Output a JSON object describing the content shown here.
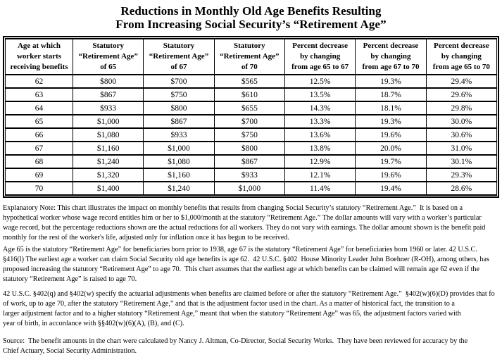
{
  "title": {
    "line1": "Reductions in Monthly Old Age Benefits Resulting",
    "line2": "From Increasing Social Security’s “Retirement Age”"
  },
  "table": {
    "headers": [
      {
        "lines": [
          "Age at which",
          "worker starts",
          "receiving benefits"
        ]
      },
      {
        "lines": [
          "Statutory",
          "“Retirement Age”",
          "of 65"
        ]
      },
      {
        "lines": [
          "Statutory",
          "“Retirement Age”",
          "of 67"
        ]
      },
      {
        "lines": [
          "Statutory",
          "“Retirement Age”",
          "of 70"
        ]
      },
      {
        "lines": [
          "Percent decrease",
          "by changing",
          "from age 65 to 67"
        ]
      },
      {
        "lines": [
          "Percent decrease",
          "by changing",
          "from age 67 to 70"
        ]
      },
      {
        "lines": [
          "Percent decrease",
          "by changing",
          "from age 65 to 70"
        ]
      }
    ],
    "rows": [
      [
        "62",
        "$800",
        "$700",
        "$565",
        "12.5%",
        "19.3%",
        "29.4%"
      ],
      [
        "63",
        "$867",
        "$750",
        "$610",
        "13.5%",
        "18.7%",
        "29.6%"
      ],
      [
        "64",
        "$933",
        "$800",
        "$655",
        "14.3%",
        "18.1%",
        "29.8%"
      ],
      [
        "65",
        "$1,000",
        "$867",
        "$700",
        "13.3%",
        "19.3%",
        "30.0%"
      ],
      [
        "66",
        "$1,080",
        "$933",
        "$750",
        "13.6%",
        "19.6%",
        "30.6%"
      ],
      [
        "67",
        "$1,160",
        "$1,000",
        "$800",
        "13.8%",
        "20.0%",
        "31.0%"
      ],
      [
        "68",
        "$1,240",
        "$1,080",
        "$867",
        "12.9%",
        "19.7%",
        "30.1%"
      ],
      [
        "69",
        "$1,320",
        "$1,160",
        "$933",
        "12.1%",
        "19.6%",
        "29.3%"
      ],
      [
        "70",
        "$1,400",
        "$1,240",
        "$1,000",
        "11.4%",
        "19.4%",
        "28.6%"
      ]
    ]
  },
  "notes": {
    "paragraphs": [
      {
        "lines": [
          "Explanatory Note: This chart illustrates the impact on monthly benefits that results from changing Social Security’s statutory “Retirement Age.”  It is based on a",
          "hypothetical worker whose wage record entitles him or her to $1,000/month at the statutory “Retirement Age.” The dollar amounts will vary with a worker’s particular",
          "wage record, but the percentage reductions shown are the actual reductions for all workers. They do not vary with earnings. The dollar amount shown is the benefit paid",
          "monthly for the rest of the worker's life, adjusted only for inflation once it has begun to be received."
        ]
      },
      {
        "lines": [
          "Age 65 is the statutory “Retirement Age” for beneficiaries born prior to 1938, age 67 is the statutory “Retirement Age” for beneficiaries born 1960 or later. 42 U.S.C.",
          "§416(l) The earliest age a worker can claim Social Security old age benefits is age 62.  42 U.S.C. §402  House Minority Leader John Boehner (R-OH), among others, has",
          "proposed increasing the statutory “Retirement Age” to age 70.  This chart assumes that the earliest age at which benefits can be claimed will remain age 62 even if the",
          "statutory “Retirement Age” is raised to age 70."
        ]
      },
      {
        "lines": [
          "42 U.S.C. §402(q) and §402(w) specify the actuarial adjustments when benefits are claimed before or after the statutory “Retirement Age.”  §402(w)(6)(D) provides that fo",
          "of work, up to age 70, after the statutory “Retirement Age,” and that is the adjustment factor used in the chart. As a matter of historical fact, the transition to a",
          "larger adjustment factor and to a higher statutory “Retirement Age,” meant that when the statutory “Retirement Age” was 65, the adjustment factors varied with",
          "year of birth, in accordance with §§402(w)(6)(A), (B), and (C)."
        ]
      },
      {
        "lines": [
          "Source:  The benefit amounts in the chart were calculated by Nancy J. Altman, Co-Director, Social Security Works.  They have been reviewed for accuracy by the",
          "Chief Actuary, Social Security Administration."
        ]
      }
    ]
  },
  "chart_data": {
    "type": "table",
    "title": "Reductions in Monthly Old Age Benefits Resulting From Increasing Social Security’s “Retirement Age”",
    "columns": [
      "Age at which worker starts receiving benefits",
      "Statutory “Retirement Age” of 65",
      "Statutory “Retirement Age” of 67",
      "Statutory “Retirement Age” of 70",
      "Percent decrease by changing from age 65 to 67",
      "Percent decrease by changing from age 67 to 70",
      "Percent decrease by changing from age 65 to 70"
    ],
    "ages": [
      62,
      63,
      64,
      65,
      66,
      67,
      68,
      69,
      70
    ],
    "series": [
      {
        "name": "Benefit at statutory age 65",
        "values": [
          800,
          867,
          933,
          1000,
          1080,
          1160,
          1240,
          1320,
          1400
        ]
      },
      {
        "name": "Benefit at statutory age 67",
        "values": [
          700,
          750,
          800,
          867,
          933,
          1000,
          1080,
          1160,
          1240
        ]
      },
      {
        "name": "Benefit at statutory age 70",
        "values": [
          565,
          610,
          655,
          700,
          750,
          800,
          867,
          933,
          1000
        ]
      },
      {
        "name": "Percent decrease 65 to 67",
        "values": [
          12.5,
          13.5,
          14.3,
          13.3,
          13.6,
          13.8,
          12.9,
          12.1,
          11.4
        ]
      },
      {
        "name": "Percent decrease 67 to 70",
        "values": [
          19.3,
          18.7,
          18.1,
          19.3,
          19.6,
          20.0,
          19.7,
          19.6,
          19.4
        ]
      },
      {
        "name": "Percent decrease 65 to 70",
        "values": [
          29.4,
          29.6,
          29.8,
          30.0,
          30.6,
          31.0,
          30.1,
          29.3,
          28.6
        ]
      }
    ]
  }
}
